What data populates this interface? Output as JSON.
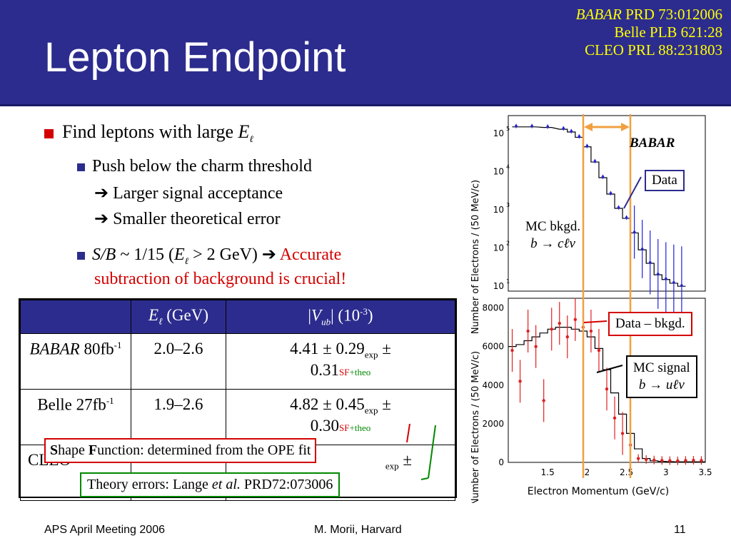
{
  "slide": {
    "title": "Lepton Endpoint",
    "refs": [
      "PRD 73:012006",
      "Belle PLB 621:28",
      "CLEO PRL 88:231803"
    ],
    "refs_babar": "BABAR",
    "bullets": {
      "b1_text": "Find leptons with large ",
      "b1_var": "E",
      "b1_sub": "ℓ",
      "b2a": "Push below the charm threshold",
      "b2a_line2": "Larger signal acceptance",
      "b2a_line3": "Smaller theoretical error",
      "b2b_var": "S/B",
      "b2b_text": " ~ 1/15 (",
      "b2b_e": "E",
      "b2b_sub": "ℓ",
      "b2b_rest": " > 2 GeV) ",
      "b2b_red1": "Accurate",
      "b2b_red2": "subtraction of background is crucial!"
    },
    "table": {
      "headers": [
        "",
        "Eℓ (GeV)",
        "|Vub| (10-3)"
      ],
      "rows": [
        {
          "exp": "BABAR",
          "lumi": "80fb",
          "range": "2.0–2.6",
          "v1": "4.41 ± 0.29",
          "v2": "0.31"
        },
        {
          "exp": "Belle",
          "lumi": "27fb",
          "range": "1.9–2.6",
          "v1": "4.82 ± 0.45",
          "v2": "0.30"
        },
        {
          "exp": "CLEO",
          "lumi": "",
          "range": "",
          "v1": "",
          "v2": ""
        }
      ],
      "sub_exp": "exp",
      "sub_sf": "SF",
      "sub_theo": "+theo"
    },
    "callouts": {
      "sf": "hape ",
      "sf_S": "S",
      "sf_F": "F",
      "sf_rest": "unction: determined from the OPE fit",
      "theory_a": "Theory errors: Lange ",
      "theory_etal": "et al.",
      "theory_b": " PRD72:073006",
      "data": "Data",
      "data_bkgd": "Data – bkgd.",
      "mc_signal_1": "MC signal",
      "mc_signal_2": "b → uℓv",
      "mc_bkgd_1": "MC bkgd.",
      "mc_bkgd_2": "b → cℓv",
      "babar": "BABAR"
    },
    "footer": {
      "left": "APS April Meeting 2006",
      "center": "M. Morii, Harvard",
      "right": "11"
    }
  },
  "chart_data": [
    {
      "type": "scatter",
      "ylabel": "Number of Electrons / (50 MeV/c)",
      "yscale": "log",
      "yticks": [
        "10",
        "10",
        "10",
        "10",
        "10"
      ],
      "series": [
        {
          "name": "Data",
          "x": [
            1.1,
            1.3,
            1.5,
            1.7,
            1.8,
            1.9,
            2.0,
            2.1,
            2.2,
            2.3,
            2.4,
            2.5,
            2.6,
            2.7,
            2.8,
            2.9,
            3.0,
            3.1,
            3.2
          ],
          "y": [
            150000,
            150000,
            145000,
            130000,
            110000,
            80000,
            45000,
            18000,
            7000,
            2600,
            1100,
            600,
            250,
            90,
            40,
            20,
            15,
            12,
            10
          ]
        }
      ]
    },
    {
      "type": "scatter",
      "xlabel": "Electron Momentum (GeV/c)",
      "ylabel": "Number of Electrons / (50 MeV/c)",
      "xlim": [
        1.0,
        3.5
      ],
      "ylim": [
        0,
        8500
      ],
      "xticks": [
        "1.5",
        "2",
        "2.5",
        "3",
        "3.5"
      ],
      "yticks": [
        "0",
        "2000",
        "4000",
        "6000",
        "8000"
      ],
      "series": [
        {
          "name": "Data – bkgd.",
          "x": [
            1.05,
            1.15,
            1.25,
            1.35,
            1.45,
            1.55,
            1.65,
            1.75,
            1.85,
            1.95,
            2.05,
            2.15,
            2.25,
            2.35,
            2.45,
            2.55,
            2.65,
            2.75,
            2.85,
            2.95,
            3.05,
            3.15,
            3.25,
            3.35,
            3.45
          ],
          "y": [
            5800,
            4200,
            6800,
            6000,
            3200,
            6900,
            7200,
            6500,
            7400,
            7000,
            6800,
            5800,
            3800,
            2300,
            1500,
            900,
            200,
            150,
            120,
            100,
            90,
            80,
            100,
            110,
            100
          ]
        }
      ]
    }
  ]
}
